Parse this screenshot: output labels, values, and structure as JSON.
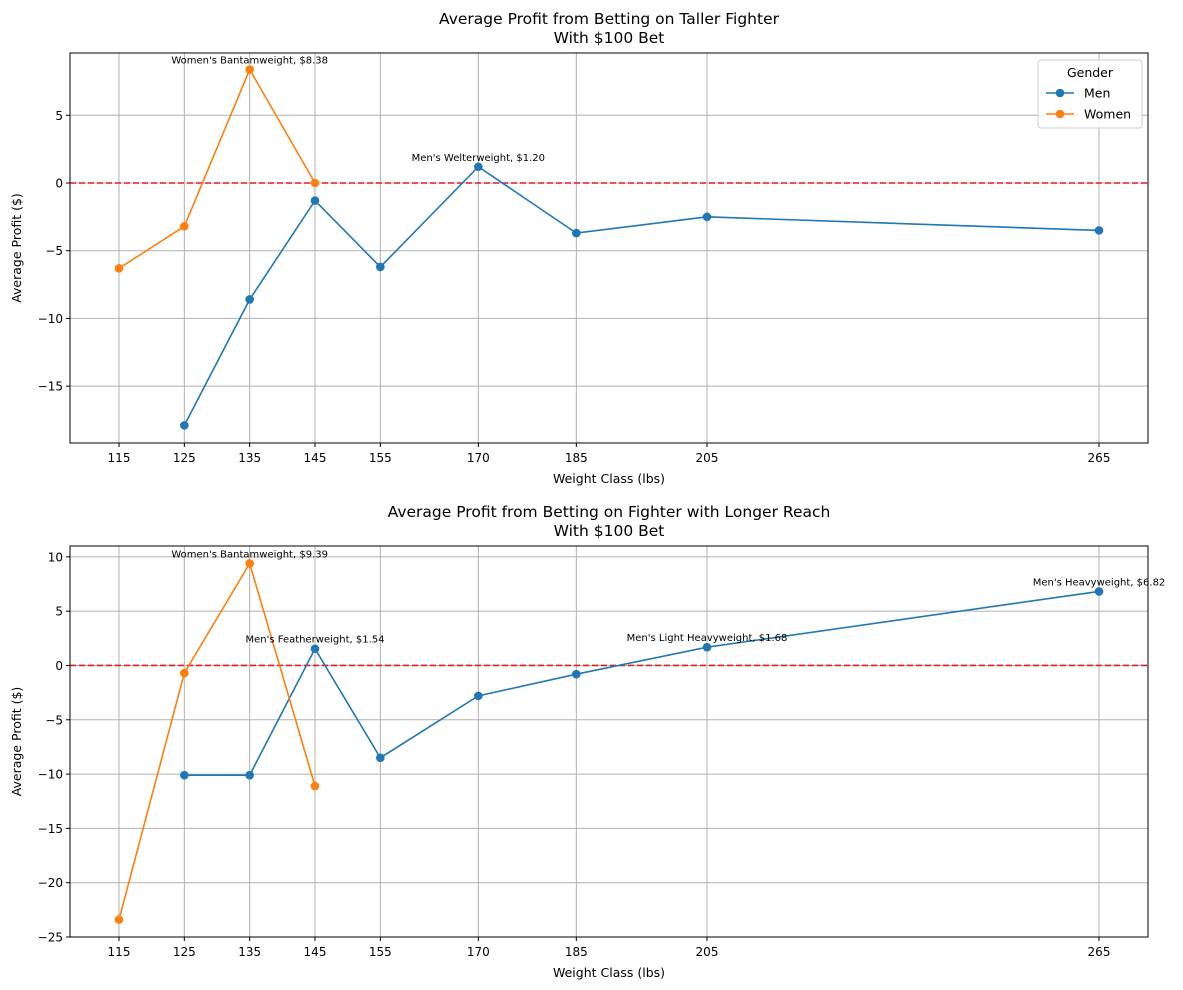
{
  "chart_data": [
    {
      "type": "line",
      "title": "Average Profit from Betting on Taller Fighter\nWith $100 Bet",
      "xlabel": "Weight Class (lbs)",
      "ylabel": "Average Profit ($)",
      "xticks": [
        115,
        125,
        135,
        145,
        155,
        170,
        185,
        205,
        265
      ],
      "yticks": [
        5,
        0,
        -5,
        -10,
        -15
      ],
      "xlim": [
        107.5,
        272.5
      ],
      "ylim": [
        -19.2,
        9.6
      ],
      "grid": true,
      "reference_line": {
        "y": 0,
        "color": "#e41a1c",
        "style": "dashed"
      },
      "legend": {
        "title": "Gender",
        "position": "top-right"
      },
      "series": [
        {
          "name": "Men",
          "color": "#1f77b4",
          "x": [
            125,
            135,
            145,
            155,
            170,
            185,
            205,
            265
          ],
          "y": [
            -17.9,
            -8.6,
            -1.3,
            -6.2,
            1.2,
            -3.7,
            -2.5,
            -3.5
          ]
        },
        {
          "name": "Women",
          "color": "#ff7f0e",
          "x": [
            115,
            125,
            135,
            145
          ],
          "y": [
            -6.3,
            -3.2,
            8.38,
            0.0
          ]
        }
      ],
      "annotations": [
        {
          "text": "Women's Bantamweight, $8.38",
          "x": 135,
          "y": 8.38
        },
        {
          "text": "Men's Welterweight, $1.20",
          "x": 170,
          "y": 1.2
        }
      ]
    },
    {
      "type": "line",
      "title": "Average Profit from Betting on Fighter with Longer Reach\nWith $100 Bet",
      "xlabel": "Weight Class (lbs)",
      "ylabel": "Average Profit ($)",
      "xticks": [
        115,
        125,
        135,
        145,
        155,
        170,
        185,
        205,
        265
      ],
      "yticks": [
        10,
        5,
        0,
        -5,
        -10,
        -15,
        -20,
        -25
      ],
      "xlim": [
        107.5,
        272.5
      ],
      "ylim": [
        -25,
        11
      ],
      "grid": true,
      "reference_line": {
        "y": 0,
        "color": "#e41a1c",
        "style": "dashed"
      },
      "series": [
        {
          "name": "Men",
          "color": "#1f77b4",
          "x": [
            125,
            135,
            145,
            155,
            170,
            185,
            205,
            265
          ],
          "y": [
            -10.1,
            -10.1,
            1.54,
            -8.5,
            -2.8,
            -0.8,
            1.68,
            6.82
          ]
        },
        {
          "name": "Women",
          "color": "#ff7f0e",
          "x": [
            115,
            125,
            135,
            145
          ],
          "y": [
            -23.4,
            -0.7,
            9.39,
            -11.1
          ]
        }
      ],
      "annotations": [
        {
          "text": "Women's Bantamweight, $9.39",
          "x": 135,
          "y": 9.39
        },
        {
          "text": "Men's Featherweight, $1.54",
          "x": 145,
          "y": 1.54
        },
        {
          "text": "Men's Light Heavyweight, $1.68",
          "x": 205,
          "y": 1.68
        },
        {
          "text": "Men's Heavyweight, $6.82",
          "x": 265,
          "y": 6.82
        }
      ]
    }
  ]
}
